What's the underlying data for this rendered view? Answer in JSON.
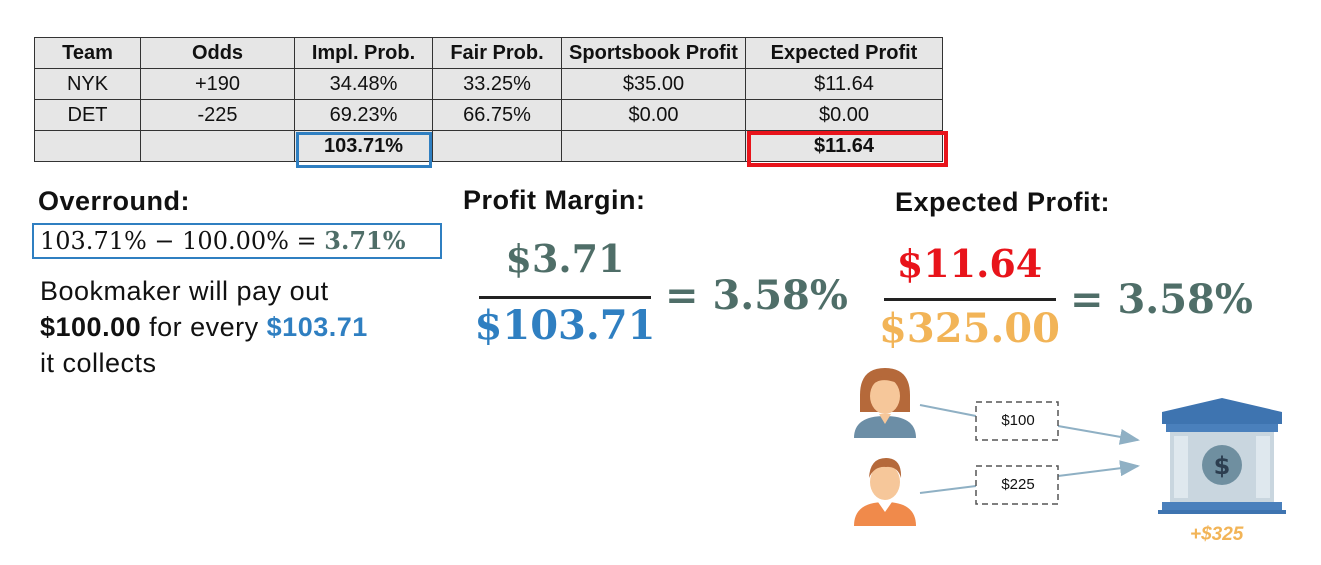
{
  "table": {
    "headers": [
      "Team",
      "Odds",
      "Impl. Prob.",
      "Fair Prob.",
      "Sportsbook Profit",
      "Expected Profit"
    ],
    "rows": [
      [
        "NYK",
        "+190",
        "34.48%",
        "33.25%",
        "$35.00",
        "$11.64"
      ],
      [
        "DET",
        "-225",
        "69.23%",
        "66.75%",
        "$0.00",
        "$0.00"
      ]
    ],
    "totals": [
      "",
      "",
      "103.71%",
      "",
      "",
      "$11.64"
    ]
  },
  "overround": {
    "heading": "Overround:",
    "formula_left": "103.71% − 100.00% = ",
    "formula_result": "3.71%",
    "text_line1": "Bookmaker will pay out",
    "text_amount_paid": "$100.00",
    "text_middle": " for every ",
    "text_amount_collected": "$103.71",
    "text_line3": "it collects"
  },
  "profit_margin": {
    "heading": "Profit Margin:",
    "numerator": "$3.71",
    "denominator": "$103.71",
    "result": "= 3.58%"
  },
  "expected_profit": {
    "heading": "Expected Profit:",
    "numerator": "$11.64",
    "denominator": "$325.00",
    "result": "= 3.58%"
  },
  "diagram": {
    "bets": [
      "$100",
      "$225"
    ],
    "bank_total": "+$325",
    "icons": [
      "woman-bettor-icon",
      "man-bettor-icon",
      "bank-icon",
      "dollar-icon",
      "arrow-icon"
    ]
  },
  "colors": {
    "blue": "#2f7fc1",
    "red": "#e8141b",
    "gold": "#f2b457",
    "teal": "#4f6e68"
  }
}
